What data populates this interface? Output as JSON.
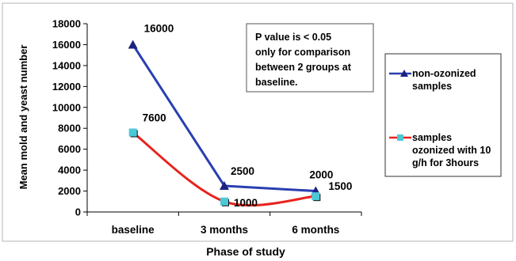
{
  "chart_data": {
    "type": "line",
    "categories": [
      "baseline",
      "3 months",
      "6 months"
    ],
    "series": [
      {
        "name": "non-ozonized samples",
        "values": [
          16000,
          2500,
          2000
        ],
        "color": "#2a3fb0",
        "marker": "triangle",
        "data_labels": [
          "16000",
          "2500",
          "2000"
        ]
      },
      {
        "name": "samples ozonized with 10 g/h for 3hours",
        "values": [
          7600,
          1000,
          1500
        ],
        "color": "#e8231d",
        "marker": "square",
        "data_labels": [
          "7600",
          "1000",
          "1500"
        ]
      }
    ],
    "xlabel": "Phase of study",
    "ylabel": "Mean mold and yeast number",
    "ylim": [
      0,
      18000
    ],
    "y_ticks": [
      "0",
      "2000",
      "4000",
      "6000",
      "8000",
      "10000",
      "12000",
      "14000",
      "16000",
      "18000"
    ],
    "grid": false,
    "legend_position": "right",
    "legend_labels": [
      [
        "non-ozonized",
        "samples"
      ],
      [
        "samples",
        "ozonized with 10",
        "g/h for 3hours"
      ]
    ],
    "annotation": [
      "P value is < 0.05",
      "only for comparison",
      "between 2 groups at",
      "baseline."
    ]
  }
}
